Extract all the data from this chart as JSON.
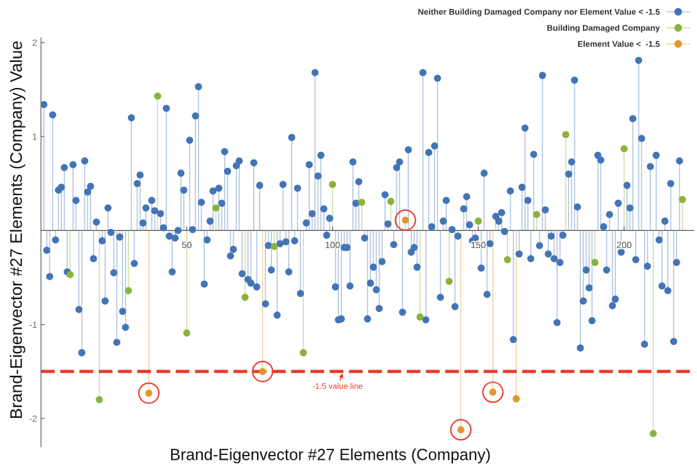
{
  "chart_data": {
    "type": "lollipop",
    "xlabel": "Brand-Eigenvector #27 Elements (Company)",
    "ylabel": "Brand-Eigenvector #27 Elements (Company) Value",
    "xlim": [
      0,
      224
    ],
    "ylim": [
      -2.3,
      2.05
    ],
    "xticks": [
      50,
      100,
      150,
      200
    ],
    "yticks": [
      -2,
      -1,
      1,
      2
    ],
    "marker": "circle",
    "legend": "top right",
    "ref_lines": [
      {
        "axis": "y",
        "value": -1.5,
        "label": "-1.5 value line",
        "color": "#e8392a",
        "line_style": "dashed"
      }
    ],
    "series": [
      {
        "name": "Neither Building Damaged Company nor Element Value < -1.5",
        "color": "#4274b6",
        "x": [
          1,
          2,
          3,
          4,
          5,
          6,
          7,
          8,
          9,
          11,
          12,
          13,
          14,
          15,
          16,
          17,
          18,
          19,
          21,
          22,
          23,
          24,
          25,
          26,
          27,
          28,
          29,
          31,
          32,
          33,
          34,
          35,
          36,
          38,
          39,
          41,
          42,
          43,
          44,
          45,
          46,
          47,
          48,
          49,
          51,
          52,
          53,
          54,
          55,
          56,
          57,
          58,
          59,
          61,
          62,
          63,
          64,
          65,
          66,
          67,
          68,
          69,
          71,
          72,
          73,
          74,
          75,
          77,
          78,
          79,
          81,
          82,
          83,
          84,
          85,
          86,
          87,
          88,
          89,
          91,
          92,
          93,
          94,
          95,
          96,
          97,
          98,
          99,
          101,
          102,
          103,
          104,
          105,
          106,
          107,
          108,
          109,
          111,
          112,
          113,
          114,
          115,
          116,
          117,
          118,
          119,
          121,
          122,
          123,
          124,
          126,
          127,
          128,
          129,
          131,
          132,
          133,
          134,
          135,
          136,
          137,
          138,
          139,
          141,
          142,
          143,
          145,
          146,
          147,
          148,
          149,
          151,
          152,
          153,
          154,
          156,
          157,
          158,
          159,
          161,
          162,
          164,
          165,
          166,
          167,
          168,
          169,
          171,
          172,
          173,
          174,
          175,
          176,
          177,
          178,
          179,
          181,
          182,
          183,
          184,
          185,
          186,
          187,
          188,
          189,
          191,
          192,
          193,
          194,
          195,
          196,
          197,
          198,
          199,
          201,
          202,
          203,
          204,
          205,
          206,
          207,
          208,
          209,
          211,
          212,
          213,
          214,
          215,
          216,
          217,
          218,
          219
        ],
        "values": [
          1.34,
          -0.21,
          -0.49,
          1.23,
          -0.1,
          0.43,
          0.46,
          0.67,
          -0.44,
          0.7,
          0.32,
          -0.84,
          -1.3,
          0.74,
          0.41,
          0.47,
          -0.3,
          0.09,
          -0.11,
          -0.75,
          0.24,
          -0.02,
          -0.45,
          -1.19,
          -0.07,
          -0.86,
          -1.03,
          1.2,
          -0.35,
          0.5,
          0.59,
          0.08,
          0.24,
          0.32,
          0.21,
          0.18,
          0.03,
          1.3,
          -0.06,
          -0.44,
          -0.08,
          0.0,
          0.61,
          0.43,
          0.96,
          0.01,
          1.22,
          1.53,
          0.3,
          -0.57,
          -0.1,
          0.1,
          0.42,
          0.45,
          0.29,
          0.84,
          0.63,
          -0.27,
          -0.2,
          0.69,
          0.74,
          -0.46,
          -0.52,
          -0.56,
          0.72,
          -0.6,
          0.48,
          -0.78,
          -0.16,
          -0.42,
          -0.9,
          -0.14,
          0.49,
          -0.12,
          -0.44,
          0.99,
          -0.11,
          0.45,
          -0.67,
          0.08,
          0.7,
          0.18,
          1.68,
          0.58,
          0.8,
          0.23,
          -0.05,
          0.13,
          -0.6,
          -0.95,
          -0.94,
          -0.18,
          -0.18,
          -0.59,
          0.73,
          0.29,
          0.52,
          -0.08,
          -0.94,
          -0.56,
          -0.39,
          -0.63,
          -0.83,
          -0.33,
          0.38,
          0.07,
          -0.15,
          0.67,
          0.73,
          -0.87,
          0.86,
          -0.23,
          -0.18,
          -0.39,
          1.68,
          -0.95,
          0.83,
          0.04,
          0.9,
          1.62,
          -0.71,
          0.1,
          0.32,
          0.01,
          -0.81,
          -0.06,
          0.23,
          0.36,
          0.06,
          -0.11,
          -0.08,
          -0.4,
          0.61,
          -0.68,
          -0.14,
          0.15,
          0.1,
          0.19,
          -0.01,
          0.42,
          -1.16,
          -0.25,
          0.46,
          1.09,
          0.32,
          -0.3,
          0.81,
          -0.16,
          1.65,
          0.22,
          -0.25,
          -0.06,
          -0.3,
          -0.98,
          -0.34,
          -0.05,
          0.6,
          0.73,
          1.6,
          0.25,
          -1.25,
          -0.75,
          -0.42,
          -0.61,
          -0.96,
          0.8,
          0.75,
          0.04,
          -0.42,
          0.17,
          -0.8,
          -0.73,
          0.29,
          -0.23,
          0.48,
          0.24,
          1.19,
          -0.31,
          1.81,
          0.98,
          -1.21,
          -0.38,
          0.68,
          0.8,
          -0.1,
          -0.59,
          0.1,
          -0.64,
          0.5,
          -1.18,
          -0.34,
          0.74
        ]
      },
      {
        "name": "Building Damaged Company",
        "color": "#8cb23c",
        "x": [
          10,
          20,
          30,
          40,
          50,
          60,
          70,
          80,
          90,
          100,
          110,
          120,
          130,
          140,
          150,
          160,
          170,
          180,
          190,
          200,
          210,
          220
        ],
        "values": [
          -0.47,
          -1.8,
          -0.64,
          1.43,
          -1.09,
          0.24,
          -0.71,
          -0.17,
          -1.3,
          0.49,
          0.3,
          0.31,
          -0.92,
          -0.54,
          0.1,
          -0.31,
          0.17,
          1.02,
          -0.34,
          0.87,
          -2.16,
          0.33
        ]
      },
      {
        "name": "Element Value <  -1.5",
        "color": "#e0962e",
        "x": [
          37,
          76,
          125,
          144,
          155,
          163
        ],
        "values": [
          -1.73,
          -1.5,
          0.11,
          -2.12,
          -1.72,
          -1.79
        ]
      },
      {
        "type": "scatter",
        "color": "#e8392a",
        "x": [
          37,
          76,
          125,
          144,
          155
        ],
        "values": [
          -1.73,
          -1.5,
          0.11,
          -2.12,
          -1.72
        ]
      }
    ]
  }
}
